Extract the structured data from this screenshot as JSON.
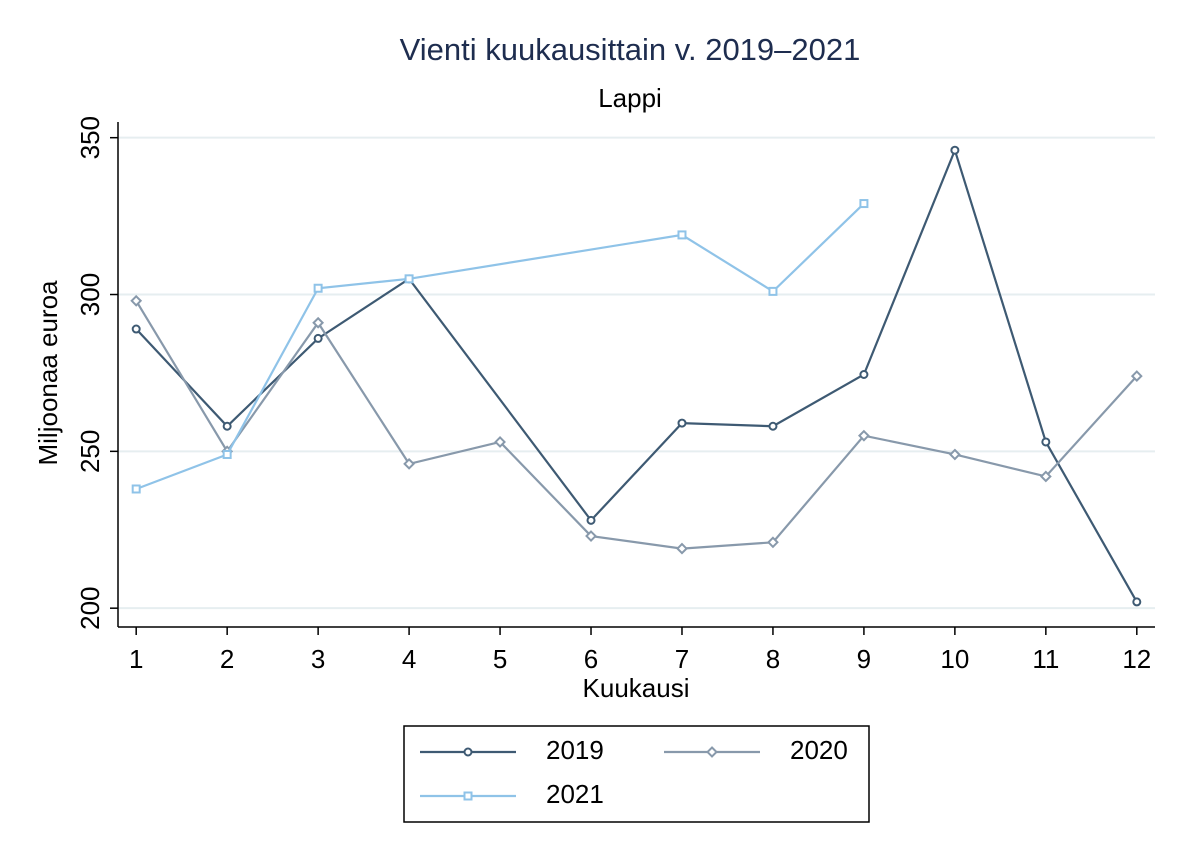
{
  "chart_data": {
    "type": "line",
    "title": "Vienti kuukausittain v. 2019–2021",
    "subtitle": "Lappi",
    "x_label": "Kuukausi",
    "y_label": "Miljoonaa euroa",
    "xlim": [
      0.8,
      12.2
    ],
    "xticks": [
      1,
      2,
      3,
      4,
      5,
      6,
      7,
      8,
      9,
      10,
      11,
      12
    ],
    "ylim": [
      194,
      355
    ],
    "yticks": [
      200,
      250,
      300,
      350
    ],
    "grid": true,
    "series": [
      {
        "name": "2019",
        "color": "#3e5a73",
        "marker": "circle",
        "x": [
          1,
          2,
          3,
          4,
          6,
          7,
          8,
          9,
          10,
          11,
          12
        ],
        "values": [
          289,
          258,
          286,
          305,
          228,
          259,
          258,
          274.5,
          346,
          253,
          202
        ]
      },
      {
        "name": "2020",
        "color": "#8899ab",
        "marker": "diamond",
        "x": [
          1,
          2,
          3,
          4,
          5,
          6,
          7,
          8,
          9,
          10,
          11,
          12
        ],
        "values": [
          298,
          250,
          291,
          246,
          253,
          223,
          219,
          221,
          255,
          249,
          242,
          274
        ]
      },
      {
        "name": "2021",
        "color": "#8fc3e8",
        "marker": "square",
        "x": [
          1,
          2,
          3,
          4,
          7,
          8,
          9
        ],
        "values": [
          238,
          249,
          302,
          305,
          319,
          301,
          329
        ]
      }
    ]
  }
}
